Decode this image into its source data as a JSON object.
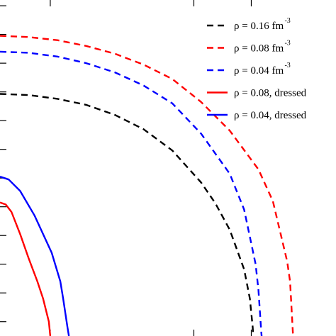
{
  "chart_data": {
    "type": "line",
    "title": "",
    "xlabel": "",
    "ylabel": "",
    "xlim": [
      0,
      1.17
    ],
    "ylim": [
      0,
      1.17
    ],
    "grid": false,
    "legend_placement": "top-right",
    "series": [
      {
        "name": "ρ = 0.16 fm",
        "name_superscript": "-3",
        "color": "#000000",
        "style": "dashed",
        "points": [
          [
            0.0,
            0.843
          ],
          [
            0.1,
            0.839
          ],
          [
            0.2,
            0.826
          ],
          [
            0.3,
            0.805
          ],
          [
            0.4,
            0.77
          ],
          [
            0.5,
            0.72
          ],
          [
            0.6,
            0.646
          ],
          [
            0.7,
            0.535
          ],
          [
            0.75,
            0.462
          ],
          [
            0.8,
            0.37
          ],
          [
            0.85,
            0.232
          ],
          [
            0.87,
            0.13
          ],
          [
            0.88,
            0.03
          ],
          [
            0.882,
            0.0
          ]
        ]
      },
      {
        "name": "ρ = 0.08 fm",
        "name_superscript": "-3",
        "color": "#ff0000",
        "style": "dashed",
        "points": [
          [
            0.0,
            1.045
          ],
          [
            0.1,
            1.041
          ],
          [
            0.2,
            1.03
          ],
          [
            0.3,
            1.01
          ],
          [
            0.4,
            0.983
          ],
          [
            0.5,
            0.945
          ],
          [
            0.6,
            0.895
          ],
          [
            0.7,
            0.815
          ],
          [
            0.8,
            0.715
          ],
          [
            0.9,
            0.58
          ],
          [
            0.95,
            0.47
          ],
          [
            1.0,
            0.26
          ],
          [
            1.01,
            0.19
          ],
          [
            1.02,
            0.01
          ],
          [
            1.021,
            0.0
          ]
        ]
      },
      {
        "name": "ρ = 0.04 fm",
        "name_superscript": "-3",
        "color": "#0000ff",
        "style": "dashed",
        "points": [
          [
            0.0,
            0.99
          ],
          [
            0.1,
            0.986
          ],
          [
            0.2,
            0.973
          ],
          [
            0.3,
            0.95
          ],
          [
            0.4,
            0.918
          ],
          [
            0.5,
            0.872
          ],
          [
            0.6,
            0.81
          ],
          [
            0.7,
            0.705
          ],
          [
            0.8,
            0.565
          ],
          [
            0.85,
            0.44
          ],
          [
            0.89,
            0.25
          ],
          [
            0.9,
            0.16
          ],
          [
            0.91,
            0.01
          ],
          [
            0.911,
            0.0
          ]
        ]
      },
      {
        "name": "ρ = 0.08, dressed",
        "color": "#ff0000",
        "style": "solid",
        "points": [
          [
            0.0,
            0.465
          ],
          [
            0.02,
            0.458
          ],
          [
            0.04,
            0.432
          ],
          [
            0.07,
            0.355
          ],
          [
            0.1,
            0.27
          ],
          [
            0.13,
            0.19
          ],
          [
            0.15,
            0.13
          ],
          [
            0.17,
            0.05
          ],
          [
            0.175,
            0.0
          ]
        ]
      },
      {
        "name": "ρ = 0.04, dressed",
        "color": "#0000ff",
        "style": "solid",
        "points": [
          [
            0.0,
            0.555
          ],
          [
            0.03,
            0.545
          ],
          [
            0.07,
            0.505
          ],
          [
            0.12,
            0.42
          ],
          [
            0.15,
            0.355
          ],
          [
            0.18,
            0.29
          ],
          [
            0.21,
            0.19
          ],
          [
            0.22,
            0.13
          ],
          [
            0.235,
            0.03
          ],
          [
            0.24,
            0.0
          ]
        ]
      }
    ]
  }
}
